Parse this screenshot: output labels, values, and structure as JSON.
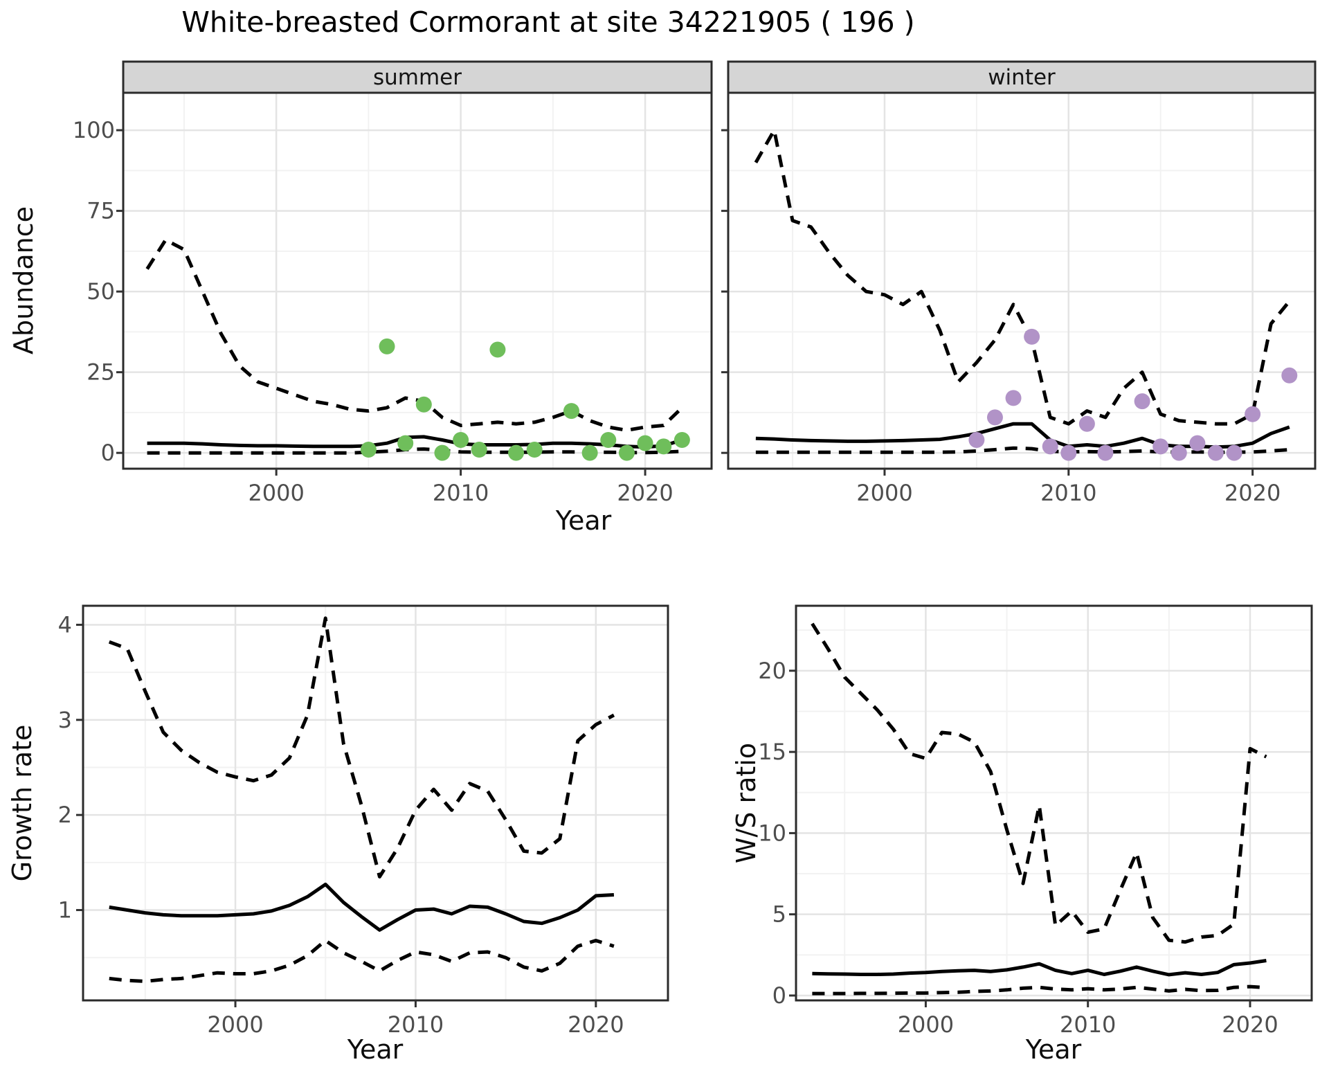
{
  "title": "White-breasted Cormorant at site 34221905 ( 196 )",
  "axes": {
    "abundance": "Abundance",
    "year_top": "Year",
    "growth_rate": "Growth rate",
    "ws_ratio": "W/S ratio",
    "year_bottom_left": "Year",
    "year_bottom_right": "Year"
  },
  "colors": {
    "summer_point": "#6FBE5B",
    "winter_point": "#B193C7",
    "line": "#000000",
    "panel_border": "#2b2b2b",
    "strip_fill": "#d5d5d5",
    "grid_major": "#e4e4e4",
    "grid_minor": "#f2f2f2",
    "tick_mark": "#333333",
    "tick_text": "#4d4d4d",
    "panel_bg": "#ffffff"
  },
  "chart_data": [
    {
      "id": "summer",
      "type": "line",
      "facet": "summer",
      "xlabel": "Year",
      "ylabel": "Abundance",
      "xlim": [
        1991.7,
        2023.6
      ],
      "ylim": [
        -4.9,
        111.6
      ],
      "x_ticks": {
        "values": [
          2000,
          2010,
          2020
        ],
        "labels": [
          "2000",
          "2010",
          "2020"
        ]
      },
      "x_minor": [
        1995,
        2005,
        2015
      ],
      "y_ticks": {
        "values": [
          0,
          25,
          50,
          75,
          100
        ],
        "labels": [
          "0",
          "25",
          "50",
          "75",
          "100"
        ]
      },
      "y_minor": [
        12.5,
        37.5,
        62.5,
        87.5
      ],
      "x": [
        1993,
        1994,
        1995,
        1996,
        1997,
        1998,
        1999,
        2000,
        2001,
        2002,
        2003,
        2004,
        2005,
        2006,
        2007,
        2008,
        2009,
        2010,
        2011,
        2012,
        2013,
        2014,
        2015,
        2016,
        2017,
        2018,
        2019,
        2020,
        2021,
        2022
      ],
      "series": [
        {
          "name": "upper-ci",
          "style": "dashed",
          "values": [
            57,
            66,
            63,
            50,
            37,
            27,
            22,
            20,
            18,
            16,
            15,
            13.5,
            13,
            14,
            17,
            16,
            11,
            8.5,
            9,
            9.5,
            9,
            9.5,
            11,
            13,
            10,
            8,
            7,
            8,
            8.5,
            14
          ]
        },
        {
          "name": "median",
          "style": "solid",
          "values": [
            3,
            3,
            3,
            2.8,
            2.5,
            2.3,
            2.2,
            2.2,
            2.1,
            2,
            2,
            2,
            2.2,
            3,
            4.8,
            5,
            4,
            2.8,
            2.5,
            2.5,
            2.5,
            2.6,
            3,
            3,
            2.8,
            2.5,
            2,
            1.8,
            2.2,
            4
          ]
        },
        {
          "name": "lower-ci",
          "style": "dashed",
          "values": [
            0,
            0,
            0,
            0,
            0,
            0,
            0,
            0,
            0,
            0,
            0,
            0,
            0.2,
            0.5,
            1,
            1.2,
            0.8,
            0.3,
            0.2,
            0.2,
            0.2,
            0.2,
            0.3,
            0.3,
            0.2,
            0.2,
            0.1,
            0.1,
            0.2,
            0.5
          ]
        }
      ],
      "points": {
        "color_key": "summer_point",
        "data": [
          [
            2005,
            1
          ],
          [
            2006,
            33
          ],
          [
            2007,
            3
          ],
          [
            2008,
            15
          ],
          [
            2009,
            0
          ],
          [
            2010,
            4
          ],
          [
            2011,
            1
          ],
          [
            2012,
            32
          ],
          [
            2013,
            0
          ],
          [
            2014,
            1
          ],
          [
            2016,
            13
          ],
          [
            2017,
            0
          ],
          [
            2018,
            4
          ],
          [
            2019,
            0
          ],
          [
            2020,
            3
          ],
          [
            2021,
            2
          ],
          [
            2022,
            4
          ]
        ]
      }
    },
    {
      "id": "winter",
      "type": "line",
      "facet": "winter",
      "xlabel": "Year",
      "ylabel": "Abundance",
      "xlim": [
        1991.5,
        2023.4
      ],
      "ylim": [
        -4.9,
        111.6
      ],
      "x_ticks": {
        "values": [
          2000,
          2010,
          2020
        ],
        "labels": [
          "2000",
          "2010",
          "2020"
        ]
      },
      "x_minor": [
        1995,
        2005,
        2015
      ],
      "y_ticks": {
        "values": [
          0,
          25,
          50,
          75,
          100
        ],
        "labels": []
      },
      "y_minor": [
        12.5,
        37.5,
        62.5,
        87.5
      ],
      "x": [
        1993,
        1994,
        1995,
        1996,
        1997,
        1998,
        1999,
        2000,
        2001,
        2002,
        2003,
        2004,
        2005,
        2006,
        2007,
        2008,
        2009,
        2010,
        2011,
        2012,
        2013,
        2014,
        2015,
        2016,
        2017,
        2018,
        2019,
        2020,
        2021,
        2022
      ],
      "series": [
        {
          "name": "upper-ci",
          "style": "dashed",
          "values": [
            90,
            100,
            72,
            70,
            62,
            55,
            50,
            49,
            46,
            50,
            38,
            22,
            28,
            35,
            46,
            35,
            11,
            9,
            13,
            11,
            20,
            25,
            12,
            10,
            9.5,
            9,
            9,
            12,
            40,
            47
          ]
        },
        {
          "name": "median",
          "style": "solid",
          "values": [
            4.5,
            4.3,
            4,
            3.8,
            3.7,
            3.6,
            3.6,
            3.7,
            3.8,
            4,
            4.2,
            5,
            6,
            7.5,
            9,
            9,
            4,
            2,
            2.5,
            2,
            3,
            4.5,
            2.5,
            2,
            2,
            1.8,
            2,
            3,
            6,
            8
          ]
        },
        {
          "name": "lower-ci",
          "style": "dashed",
          "values": [
            0.2,
            0.2,
            0.2,
            0.2,
            0.2,
            0.2,
            0.2,
            0.2,
            0.2,
            0.2,
            0.2,
            0.3,
            0.6,
            1,
            1.5,
            1.3,
            0.5,
            0.3,
            0.4,
            0.3,
            0.4,
            0.6,
            0.3,
            0.2,
            0.3,
            0.2,
            0.2,
            0.3,
            0.6,
            1
          ]
        }
      ],
      "points": {
        "color_key": "winter_point",
        "data": [
          [
            2005,
            4
          ],
          [
            2006,
            11
          ],
          [
            2007,
            17
          ],
          [
            2008,
            36
          ],
          [
            2009,
            2
          ],
          [
            2010,
            0
          ],
          [
            2011,
            9
          ],
          [
            2012,
            0
          ],
          [
            2014,
            16
          ],
          [
            2015,
            2
          ],
          [
            2016,
            0
          ],
          [
            2017,
            3
          ],
          [
            2018,
            0
          ],
          [
            2019,
            0
          ],
          [
            2020,
            12
          ],
          [
            2022,
            24
          ]
        ]
      }
    },
    {
      "id": "growth",
      "type": "line",
      "facet": "",
      "xlabel": "Year",
      "ylabel": "Growth rate",
      "xlim": [
        1991.55,
        2024.0
      ],
      "ylim": [
        0.05,
        4.2
      ],
      "x_ticks": {
        "values": [
          2000,
          2010,
          2020
        ],
        "labels": [
          "2000",
          "2010",
          "2020"
        ]
      },
      "x_minor": [
        1995,
        2005,
        2015
      ],
      "y_ticks": {
        "values": [
          1,
          2,
          3,
          4
        ],
        "labels": [
          "1",
          "2",
          "3",
          "4"
        ]
      },
      "y_minor": [
        0.5,
        1.5,
        2.5,
        3.5
      ],
      "x": [
        1993,
        1994,
        1995,
        1996,
        1997,
        1998,
        1999,
        2000,
        2001,
        2002,
        2003,
        2004,
        2005,
        2006,
        2007,
        2008,
        2009,
        2010,
        2011,
        2012,
        2013,
        2014,
        2015,
        2016,
        2017,
        2018,
        2019,
        2020,
        2021
      ],
      "series": [
        {
          "name": "upper-ci",
          "style": "dashed",
          "values": [
            3.82,
            3.75,
            3.3,
            2.87,
            2.68,
            2.55,
            2.45,
            2.4,
            2.36,
            2.42,
            2.6,
            3.05,
            4.07,
            2.75,
            2.1,
            1.35,
            1.65,
            2.05,
            2.27,
            2.05,
            2.33,
            2.25,
            1.95,
            1.62,
            1.6,
            1.75,
            2.78,
            2.95,
            3.05
          ]
        },
        {
          "name": "median",
          "style": "solid",
          "values": [
            1.03,
            1.0,
            0.97,
            0.95,
            0.94,
            0.94,
            0.94,
            0.95,
            0.96,
            0.99,
            1.05,
            1.14,
            1.27,
            1.08,
            0.93,
            0.79,
            0.9,
            1.0,
            1.01,
            0.96,
            1.04,
            1.03,
            0.96,
            0.88,
            0.86,
            0.92,
            1.0,
            1.15,
            1.16
          ]
        },
        {
          "name": "lower-ci",
          "style": "dashed",
          "values": [
            0.28,
            0.26,
            0.25,
            0.27,
            0.28,
            0.31,
            0.34,
            0.33,
            0.33,
            0.36,
            0.42,
            0.52,
            0.68,
            0.55,
            0.46,
            0.36,
            0.47,
            0.56,
            0.53,
            0.46,
            0.55,
            0.56,
            0.5,
            0.4,
            0.36,
            0.44,
            0.62,
            0.68,
            0.62
          ]
        }
      ]
    },
    {
      "id": "ws",
      "type": "line",
      "facet": "",
      "xlabel": "Year",
      "ylabel": "W/S ratio",
      "xlim": [
        1992.0,
        2023.8
      ],
      "ylim": [
        -0.3,
        24.0
      ],
      "x_ticks": {
        "values": [
          2000,
          2010,
          2020
        ],
        "labels": [
          "2000",
          "2010",
          "2020"
        ]
      },
      "x_minor": [
        1995,
        2005,
        2015
      ],
      "y_ticks": {
        "values": [
          0,
          5,
          10,
          15,
          20
        ],
        "labels": [
          "0",
          "5",
          "10",
          "15",
          "20"
        ]
      },
      "y_minor": [
        2.5,
        7.5,
        12.5,
        17.5,
        22.5
      ],
      "x": [
        1993,
        1994,
        1995,
        1996,
        1997,
        1998,
        1999,
        2000,
        2001,
        2002,
        2003,
        2004,
        2005,
        2006,
        2007,
        2008,
        2009,
        2010,
        2011,
        2012,
        2013,
        2014,
        2015,
        2016,
        2017,
        2018,
        2019,
        2020,
        2021
      ],
      "series": [
        {
          "name": "upper-ci",
          "style": "dashed",
          "values": [
            22.9,
            21.3,
            19.6,
            18.6,
            17.6,
            16.4,
            14.9,
            14.6,
            16.2,
            16.1,
            15.6,
            13.8,
            10.2,
            6.9,
            11.7,
            4.3,
            5.2,
            3.9,
            4.1,
            6.5,
            8.8,
            4.8,
            3.4,
            3.3,
            3.6,
            3.7,
            4.4,
            15.2,
            14.7
          ]
        },
        {
          "name": "median",
          "style": "solid",
          "values": [
            1.35,
            1.33,
            1.32,
            1.3,
            1.3,
            1.32,
            1.38,
            1.42,
            1.48,
            1.52,
            1.55,
            1.48,
            1.58,
            1.75,
            1.95,
            1.55,
            1.35,
            1.55,
            1.3,
            1.5,
            1.75,
            1.5,
            1.28,
            1.4,
            1.3,
            1.42,
            1.9,
            2.0,
            2.15
          ]
        },
        {
          "name": "lower-ci",
          "style": "dashed",
          "values": [
            0.12,
            0.12,
            0.12,
            0.13,
            0.13,
            0.14,
            0.15,
            0.15,
            0.18,
            0.2,
            0.25,
            0.28,
            0.35,
            0.45,
            0.5,
            0.4,
            0.35,
            0.42,
            0.35,
            0.4,
            0.5,
            0.4,
            0.28,
            0.38,
            0.3,
            0.32,
            0.5,
            0.55,
            0.48
          ]
        }
      ]
    }
  ]
}
